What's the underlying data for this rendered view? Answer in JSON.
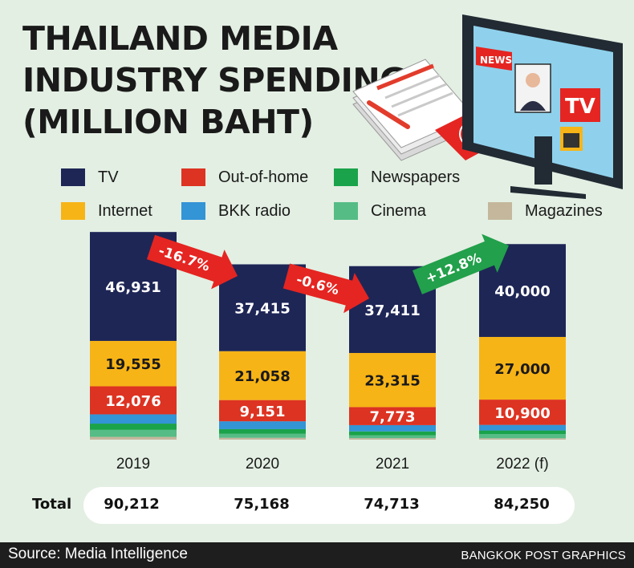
{
  "title_lines": [
    "THAILAND MEDIA",
    "INDUSTRY SPENDING",
    "(MILLION BAHT)"
  ],
  "colors": {
    "background": "#e3efe3",
    "tv": "#1e2656",
    "internet": "#f7b417",
    "out_of_home": "#dd3322",
    "bkk_radio": "#3394d6",
    "newspapers": "#1aa34a",
    "cinema": "#55bc86",
    "magazines": "#c4b79c",
    "arrow_down": "#e52521",
    "arrow_up": "#22a04b"
  },
  "legend": [
    {
      "key": "tv",
      "label": "TV"
    },
    {
      "key": "out_of_home",
      "label": "Out-of-home"
    },
    {
      "key": "newspapers",
      "label": "Newspapers"
    },
    {
      "key": "internet",
      "label": "Internet"
    },
    {
      "key": "bkk_radio",
      "label": "BKK radio"
    },
    {
      "key": "cinema",
      "label": "Cinema"
    },
    {
      "key": "magazines",
      "label": "Magazines"
    }
  ],
  "chart_data": {
    "type": "bar",
    "stacked": true,
    "categories": [
      "2019",
      "2020",
      "2021",
      "2022 (f)"
    ],
    "series": [
      {
        "key": "magazines",
        "name": "Magazines",
        "values": [
          1200,
          800,
          650,
          600
        ]
      },
      {
        "key": "cinema",
        "name": "Cinema",
        "values": [
          3000,
          1700,
          1200,
          1800
        ]
      },
      {
        "key": "newspapers",
        "name": "Newspapers",
        "values": [
          2700,
          2000,
          1700,
          1550
        ]
      },
      {
        "key": "bkk_radio",
        "name": "BKK radio",
        "values": [
          4000,
          3400,
          2700,
          2400
        ]
      },
      {
        "key": "out_of_home",
        "name": "Out-of-home",
        "values": [
          12076,
          9151,
          7773,
          10900
        ],
        "labels": [
          "12,076",
          "9,151",
          "7,773",
          "10,900"
        ]
      },
      {
        "key": "internet",
        "name": "Internet",
        "values": [
          19555,
          21058,
          23315,
          27000
        ],
        "labels": [
          "19,555",
          "21,058",
          "23,315",
          "27,000"
        ]
      },
      {
        "key": "tv",
        "name": "TV",
        "values": [
          46931,
          37415,
          37411,
          40000
        ],
        "labels": [
          "46,931",
          "37,415",
          "37,411",
          "40,000"
        ]
      }
    ],
    "changes": [
      {
        "label": "-16.7%",
        "direction": "down"
      },
      {
        "label": "-0.6%",
        "direction": "down"
      },
      {
        "label": "+12.8%",
        "direction": "up"
      }
    ],
    "totals": [
      "90,212",
      "75,168",
      "74,713",
      "84,250"
    ],
    "total_label": "Total"
  },
  "source": "Source: Media Intelligence",
  "credit": "BANGKOK POST GRAPHICS",
  "illustration": {
    "news_label": "NEWS",
    "tv_label": "TV"
  }
}
